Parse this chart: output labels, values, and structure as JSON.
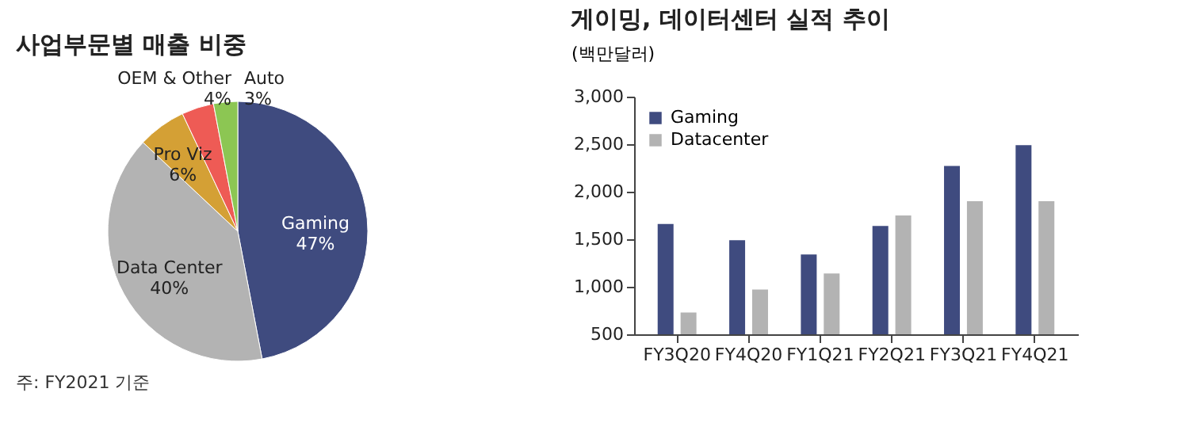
{
  "chart_data": [
    {
      "type": "pie",
      "title": "사업부문별 매출 비중",
      "categories": [
        "Gaming",
        "Data Center",
        "Pro Viz",
        "OEM & Other",
        "Auto"
      ],
      "values": [
        47,
        40,
        6,
        4,
        3
      ],
      "value_labels": [
        "47%",
        "40%",
        "6%",
        "4%",
        "3%"
      ],
      "colors": [
        "#3f4b7f",
        "#b3b3b3",
        "#d4a035",
        "#ee5b55",
        "#8cc653"
      ],
      "legend": false,
      "annotations": [
        "주: FY2021 기준"
      ]
    },
    {
      "type": "bar",
      "title": "게이밍, 데이터센터 실적 추이",
      "ylabel": "(백만달러)",
      "categories": [
        "FY3Q20",
        "FY4Q20",
        "FY1Q21",
        "FY2Q21",
        "FY3Q21",
        "FY4Q21"
      ],
      "series": [
        {
          "name": "Gaming",
          "color": "#3f4b7f",
          "values": [
            1660,
            1490,
            1340,
            1640,
            2270,
            2490
          ]
        },
        {
          "name": "Datacenter",
          "color": "#b3b3b3",
          "values": [
            730,
            970,
            1140,
            1750,
            1900,
            1900
          ]
        }
      ],
      "ylim": [
        500,
        3000
      ],
      "yticks": [
        {
          "value": 500,
          "label": "500"
        },
        {
          "value": 1000,
          "label": "1,000"
        },
        {
          "value": 1500,
          "label": "1,500"
        },
        {
          "value": 2000,
          "label": "2,000"
        },
        {
          "value": 2500,
          "label": "2,500"
        },
        {
          "value": 3000,
          "label": "3,000"
        }
      ],
      "grid": false,
      "legend": "top left"
    }
  ]
}
